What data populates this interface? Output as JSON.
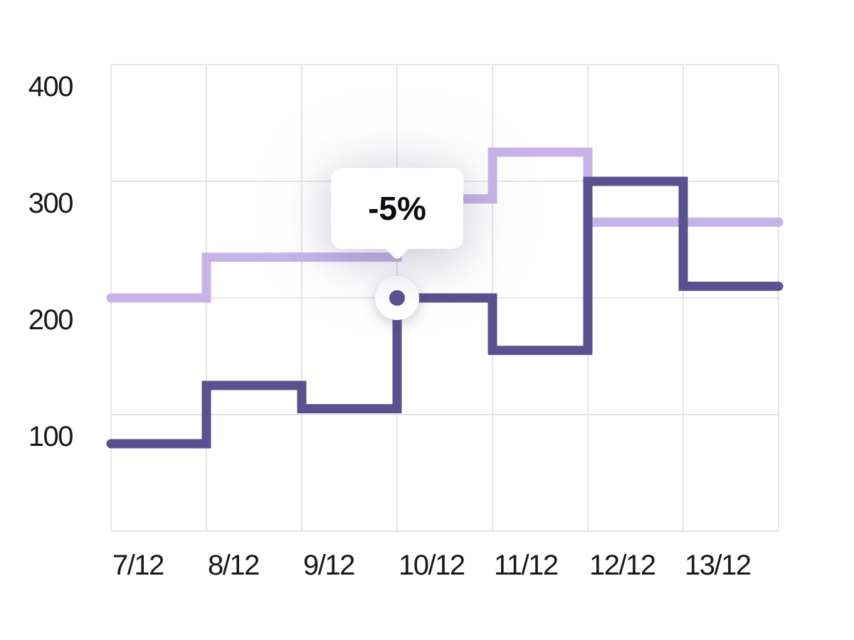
{
  "page": {
    "background": "#ffffff",
    "label_color": "#17171c"
  },
  "chart_data": {
    "type": "line",
    "subtype": "step-after",
    "title": "",
    "xlabel": "",
    "ylabel": "",
    "categories": [
      "7/12",
      "8/12",
      "9/12",
      "10/12",
      "11/12",
      "12/12",
      "13/12"
    ],
    "y_ticks": [
      "400",
      "300",
      "200",
      "100"
    ],
    "ylim": [
      0,
      400
    ],
    "grid": true,
    "grid_color": "#e6e4e9",
    "legend_position": "none",
    "series": [
      {
        "name": "light-purple-series",
        "color": "#c8b3e8",
        "values": [
          200,
          235,
          235,
          285,
          325,
          265,
          265
        ]
      },
      {
        "name": "dark-purple-series",
        "color": "#5a5190",
        "values": [
          75,
          125,
          105,
          200,
          155,
          300,
          210
        ]
      }
    ],
    "highlight": {
      "series": "dark-purple-series",
      "category": "10/12",
      "value": 200,
      "tooltip": "-5%",
      "dot_outer_color": "#ffffff",
      "dot_inner_color": "#5a5190"
    }
  }
}
